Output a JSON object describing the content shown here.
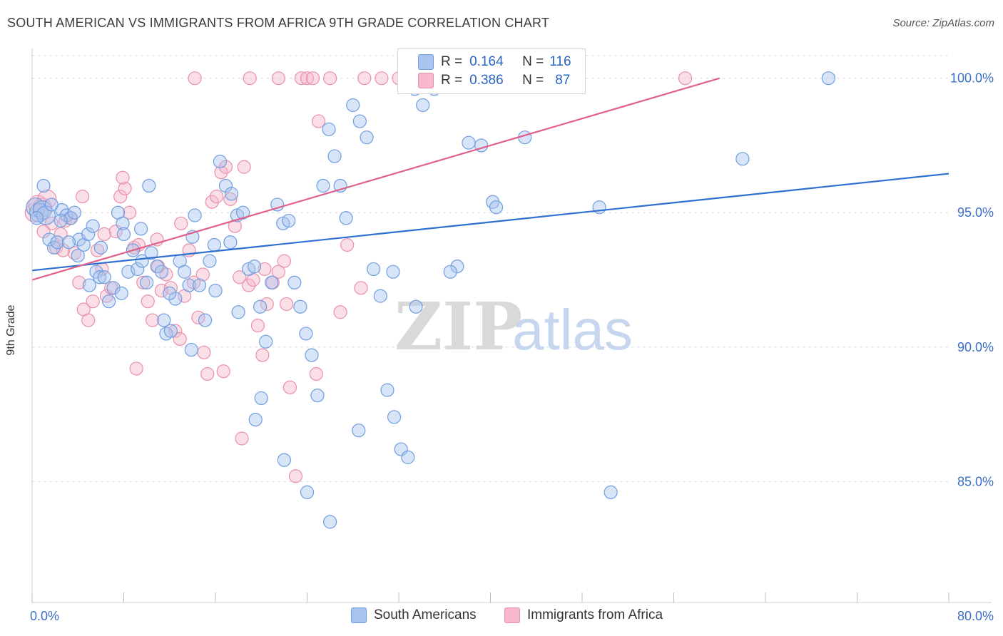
{
  "title": "SOUTH AMERICAN VS IMMIGRANTS FROM AFRICA 9TH GRADE CORRELATION CHART",
  "source": "Source: ZipAtlas.com",
  "watermark": {
    "part1": "ZIP",
    "part2": "atlas"
  },
  "colors": {
    "blue_fill": "#a9c4ee",
    "blue_stroke": "#6f9ee0",
    "blue_line": "#2e6fd0",
    "pink_fill": "#f6b8ca",
    "pink_stroke": "#ea8fab",
    "pink_line": "#e0608a",
    "tick_text": "#3b6fc7",
    "grid": "#dcdcdc"
  },
  "legend": {
    "series1": {
      "r_label": "R =",
      "r_value": "0.164",
      "n_label": "N =",
      "n_value": "116"
    },
    "series2": {
      "r_label": "R =",
      "r_value": "0.386",
      "n_label": "N =",
      "n_value": "87"
    }
  },
  "chart_data": {
    "type": "scatter",
    "title": "SOUTH AMERICAN VS IMMIGRANTS FROM AFRICA 9TH GRADE CORRELATION CHART",
    "xlabel": "",
    "ylabel": "9th Grade",
    "xlim": [
      0,
      80
    ],
    "ylim": [
      80.5,
      101
    ],
    "x_tick_labels": [
      "0.0%",
      "80.0%"
    ],
    "y_ticks": [
      85,
      90,
      95,
      100
    ],
    "y_tick_labels": [
      "85.0%",
      "90.0%",
      "95.0%",
      "100.0%"
    ],
    "legend_position": "bottom",
    "series": [
      {
        "name": "South Americans",
        "color": "blue",
        "r": 0.164,
        "n": 116,
        "trend": {
          "x": [
            0,
            80
          ],
          "y": [
            92.85,
            96.45
          ]
        },
        "points": [
          [
            0.3,
            95.2
          ],
          [
            0.6,
            95.0
          ],
          [
            0.9,
            95.1
          ],
          [
            1.2,
            94.9
          ],
          [
            1.5,
            94.0
          ],
          [
            1.9,
            93.7
          ],
          [
            2.2,
            93.9
          ],
          [
            2.6,
            95.1
          ],
          [
            3.0,
            94.9
          ],
          [
            3.4,
            94.8
          ],
          [
            3.7,
            95.0
          ],
          [
            4.1,
            94.0
          ],
          [
            4.5,
            93.8
          ],
          [
            4.9,
            94.2
          ],
          [
            5.3,
            94.5
          ],
          [
            5.6,
            92.8
          ],
          [
            5.9,
            92.6
          ],
          [
            6.3,
            92.6
          ],
          [
            6.7,
            91.7
          ],
          [
            7.1,
            92.2
          ],
          [
            7.5,
            95.0
          ],
          [
            7.9,
            94.6
          ],
          [
            8.4,
            92.8
          ],
          [
            8.8,
            93.6
          ],
          [
            9.2,
            92.9
          ],
          [
            9.6,
            93.2
          ],
          [
            10.0,
            92.4
          ],
          [
            10.4,
            93.5
          ],
          [
            10.9,
            93.0
          ],
          [
            11.3,
            92.8
          ],
          [
            11.7,
            90.5
          ],
          [
            12.1,
            90.6
          ],
          [
            12.5,
            91.8
          ],
          [
            12.9,
            93.2
          ],
          [
            13.3,
            92.8
          ],
          [
            13.7,
            92.3
          ],
          [
            14.2,
            94.9
          ],
          [
            14.6,
            92.3
          ],
          [
            15.1,
            91.0
          ],
          [
            15.5,
            93.2
          ],
          [
            15.9,
            93.8
          ],
          [
            16.4,
            96.9
          ],
          [
            16.9,
            96.0
          ],
          [
            17.4,
            95.7
          ],
          [
            17.9,
            94.9
          ],
          [
            18.4,
            95.0
          ],
          [
            18.9,
            92.9
          ],
          [
            19.4,
            93.0
          ],
          [
            19.9,
            91.5
          ],
          [
            20.4,
            90.2
          ],
          [
            20.9,
            92.4
          ],
          [
            21.4,
            95.3
          ],
          [
            21.9,
            94.6
          ],
          [
            22.4,
            94.7
          ],
          [
            22.9,
            92.4
          ],
          [
            23.4,
            91.5
          ],
          [
            23.9,
            90.5
          ],
          [
            24.4,
            89.7
          ],
          [
            24.9,
            88.2
          ],
          [
            25.4,
            96.0
          ],
          [
            25.9,
            98.1
          ],
          [
            26.4,
            97.1
          ],
          [
            26.9,
            96.0
          ],
          [
            27.4,
            94.8
          ],
          [
            28.0,
            99.0
          ],
          [
            28.6,
            98.4
          ],
          [
            29.2,
            97.8
          ],
          [
            29.8,
            92.9
          ],
          [
            30.4,
            91.9
          ],
          [
            31.0,
            88.4
          ],
          [
            31.6,
            87.4
          ],
          [
            32.2,
            86.2
          ],
          [
            32.8,
            85.9
          ],
          [
            33.4,
            99.6
          ],
          [
            34.1,
            99.0
          ],
          [
            35.1,
            99.6
          ],
          [
            36.1,
            100.0
          ],
          [
            37.1,
            93.0
          ],
          [
            38.1,
            97.6
          ],
          [
            39.2,
            97.5
          ],
          [
            40.2,
            95.4
          ],
          [
            1.0,
            96.0
          ],
          [
            2.5,
            94.7
          ],
          [
            4.0,
            93.4
          ],
          [
            6.0,
            93.7
          ],
          [
            8.0,
            94.2
          ],
          [
            10.2,
            96.0
          ],
          [
            12.0,
            92.0
          ],
          [
            14.0,
            94.1
          ],
          [
            16.0,
            92.1
          ],
          [
            18.0,
            91.3
          ],
          [
            20.0,
            88.1
          ],
          [
            22.0,
            85.8
          ],
          [
            24.0,
            84.6
          ],
          [
            26.0,
            83.5
          ],
          [
            28.5,
            86.9
          ],
          [
            31.5,
            92.8
          ],
          [
            33.5,
            91.5
          ],
          [
            36.5,
            92.8
          ],
          [
            38.5,
            100.0
          ],
          [
            40.5,
            95.2
          ],
          [
            43.0,
            97.8
          ],
          [
            49.5,
            95.2
          ],
          [
            50.5,
            84.6
          ],
          [
            62.0,
            97.0
          ],
          [
            69.5,
            100.0
          ],
          [
            0.4,
            94.8
          ],
          [
            1.7,
            95.3
          ],
          [
            3.2,
            93.9
          ],
          [
            5.0,
            92.3
          ],
          [
            7.8,
            92.0
          ],
          [
            9.5,
            94.4
          ],
          [
            11.5,
            91.0
          ],
          [
            13.9,
            89.9
          ],
          [
            17.3,
            93.9
          ],
          [
            19.5,
            87.3
          ]
        ]
      },
      {
        "name": "Immigrants from Africa",
        "color": "pink",
        "r": 0.386,
        "n": 87,
        "trend": {
          "x": [
            0,
            60
          ],
          "y": [
            92.5,
            100.0
          ]
        },
        "points": [
          [
            0.2,
            95.0
          ],
          [
            0.5,
            95.3
          ],
          [
            0.9,
            95.2
          ],
          [
            1.3,
            95.5
          ],
          [
            1.7,
            94.6
          ],
          [
            2.1,
            93.7
          ],
          [
            2.5,
            94.2
          ],
          [
            2.9,
            94.7
          ],
          [
            3.3,
            94.8
          ],
          [
            3.7,
            93.5
          ],
          [
            4.1,
            92.4
          ],
          [
            4.5,
            91.4
          ],
          [
            4.9,
            91.0
          ],
          [
            5.3,
            91.7
          ],
          [
            5.7,
            93.6
          ],
          [
            6.1,
            92.9
          ],
          [
            6.5,
            91.9
          ],
          [
            6.9,
            92.2
          ],
          [
            7.3,
            94.3
          ],
          [
            7.7,
            95.6
          ],
          [
            8.1,
            95.9
          ],
          [
            8.5,
            95.0
          ],
          [
            8.9,
            93.7
          ],
          [
            9.3,
            93.8
          ],
          [
            9.7,
            92.4
          ],
          [
            10.1,
            91.7
          ],
          [
            10.5,
            91.0
          ],
          [
            10.9,
            94.0
          ],
          [
            11.3,
            92.1
          ],
          [
            11.7,
            92.7
          ],
          [
            12.1,
            92.2
          ],
          [
            12.5,
            90.6
          ],
          [
            12.9,
            90.3
          ],
          [
            13.3,
            91.9
          ],
          [
            13.7,
            93.6
          ],
          [
            14.1,
            92.4
          ],
          [
            14.5,
            91.1
          ],
          [
            14.9,
            92.7
          ],
          [
            15.3,
            89.0
          ],
          [
            15.7,
            95.4
          ],
          [
            16.1,
            95.6
          ],
          [
            16.5,
            96.5
          ],
          [
            16.9,
            96.7
          ],
          [
            17.3,
            95.5
          ],
          [
            17.7,
            94.5
          ],
          [
            18.1,
            92.6
          ],
          [
            18.5,
            96.7
          ],
          [
            18.9,
            92.3
          ],
          [
            19.3,
            92.5
          ],
          [
            19.7,
            90.8
          ],
          [
            20.1,
            89.7
          ],
          [
            20.5,
            91.6
          ],
          [
            21.0,
            92.4
          ],
          [
            21.5,
            92.8
          ],
          [
            22.0,
            93.2
          ],
          [
            22.5,
            88.5
          ],
          [
            23.0,
            85.2
          ],
          [
            23.5,
            100.0
          ],
          [
            24.0,
            100.0
          ],
          [
            24.5,
            100.0
          ],
          [
            25.0,
            98.4
          ],
          [
            27.5,
            93.8
          ],
          [
            29.0,
            100.0
          ],
          [
            30.5,
            100.0
          ],
          [
            32.0,
            100.0
          ],
          [
            33.5,
            100.0
          ],
          [
            14.2,
            100.0
          ],
          [
            19.0,
            100.0
          ],
          [
            21.5,
            100.0
          ],
          [
            26.0,
            100.0
          ],
          [
            57.0,
            100.0
          ],
          [
            1.0,
            94.3
          ],
          [
            2.7,
            93.6
          ],
          [
            4.4,
            95.6
          ],
          [
            6.3,
            94.2
          ],
          [
            7.9,
            96.3
          ],
          [
            9.1,
            89.2
          ],
          [
            11.0,
            93.0
          ],
          [
            13.0,
            94.6
          ],
          [
            15.0,
            89.8
          ],
          [
            16.7,
            89.1
          ],
          [
            18.3,
            86.6
          ],
          [
            20.3,
            92.9
          ],
          [
            22.2,
            91.6
          ],
          [
            24.8,
            89.0
          ],
          [
            26.9,
            91.3
          ],
          [
            28.7,
            92.2
          ]
        ]
      }
    ]
  }
}
